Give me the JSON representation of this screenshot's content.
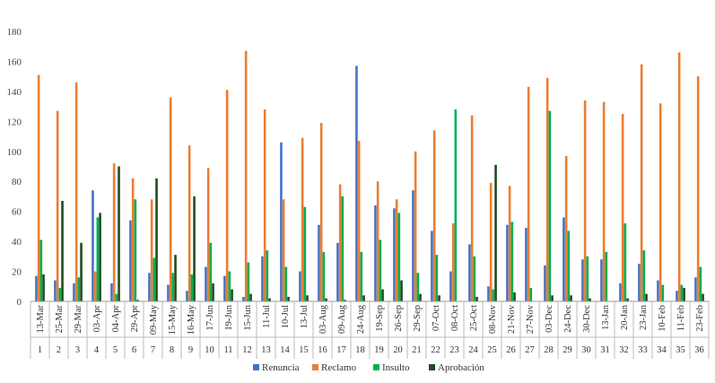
{
  "chart_data": {
    "type": "bar",
    "title": "",
    "xlabel": "",
    "ylabel": "",
    "ylim": [
      0,
      180
    ],
    "yticks": [
      0,
      20,
      40,
      60,
      80,
      100,
      120,
      140,
      160,
      180
    ],
    "grid": false,
    "legend_position": "bottom",
    "categories": [
      {
        "date": "13-Mar",
        "index": "1"
      },
      {
        "date": "25-Mar",
        "index": "2"
      },
      {
        "date": "29-Mar",
        "index": "3"
      },
      {
        "date": "03-Apr",
        "index": "4"
      },
      {
        "date": "04-Apr",
        "index": "5"
      },
      {
        "date": "29-Apr",
        "index": "6"
      },
      {
        "date": "09-May",
        "index": "7"
      },
      {
        "date": "15-May",
        "index": "8"
      },
      {
        "date": "16-May",
        "index": "9"
      },
      {
        "date": "17-Jun",
        "index": "10"
      },
      {
        "date": "19-Jun",
        "index": "11"
      },
      {
        "date": "15-Jun",
        "index": "12"
      },
      {
        "date": "11-Jul",
        "index": "13"
      },
      {
        "date": "10-Jul",
        "index": "14"
      },
      {
        "date": "13-Jul",
        "index": "15"
      },
      {
        "date": "03-Aug",
        "index": "16"
      },
      {
        "date": "09-Aug",
        "index": "17"
      },
      {
        "date": "24-Aug",
        "index": "18"
      },
      {
        "date": "19-Sep",
        "index": "19"
      },
      {
        "date": "26-Sep",
        "index": "20"
      },
      {
        "date": "29-Sep",
        "index": "21"
      },
      {
        "date": "07-Oct",
        "index": "22"
      },
      {
        "date": "08-Oct",
        "index": "23"
      },
      {
        "date": "25-Oct",
        "index": "24"
      },
      {
        "date": "08-Nov",
        "index": "25"
      },
      {
        "date": "21-Nov",
        "index": "26"
      },
      {
        "date": "27-Nov",
        "index": "27"
      },
      {
        "date": "03-Dec",
        "index": "28"
      },
      {
        "date": "24-Dec",
        "index": "29"
      },
      {
        "date": "30-Dec",
        "index": "30"
      },
      {
        "date": "13-Jan",
        "index": "31"
      },
      {
        "date": "20-Jan",
        "index": "32"
      },
      {
        "date": "23-Jan",
        "index": "33"
      },
      {
        "date": "10-Feb",
        "index": "34"
      },
      {
        "date": "11-Feb",
        "index": "35"
      },
      {
        "date": "23-Feb",
        "index": "36"
      }
    ],
    "series": [
      {
        "name": "Renuncia",
        "color": "#4472C4",
        "values": [
          17,
          14,
          12,
          74,
          12,
          54,
          19,
          11,
          7,
          23,
          17,
          3,
          30,
          106,
          20,
          51,
          39,
          157,
          64,
          62,
          74,
          47,
          20,
          38,
          10,
          51,
          49,
          24,
          56,
          28,
          28,
          12,
          25,
          14,
          7,
          16
        ]
      },
      {
        "name": "Reclamo",
        "color": "#ED7D31",
        "values": [
          151,
          127,
          146,
          20,
          92,
          82,
          68,
          136,
          104,
          89,
          141,
          167,
          128,
          68,
          109,
          119,
          78,
          107,
          80,
          68,
          100,
          114,
          52,
          124,
          79,
          77,
          143,
          149,
          97,
          134,
          133,
          125,
          158,
          132,
          166,
          150
        ]
      },
      {
        "name": "Insulto",
        "color": "#00B050",
        "values": [
          41,
          9,
          16,
          56,
          5,
          68,
          29,
          19,
          18,
          39,
          20,
          26,
          34,
          23,
          63,
          33,
          70,
          33,
          41,
          59,
          19,
          31,
          128,
          30,
          8,
          53,
          9,
          127,
          47,
          30,
          33,
          52,
          34,
          11,
          11,
          23
        ]
      },
      {
        "name": "Aprobación",
        "color": "#1E4D1E",
        "values": [
          18,
          67,
          39,
          59,
          90,
          1,
          82,
          31,
          70,
          12,
          8,
          5,
          2,
          3,
          4,
          2,
          1,
          4,
          8,
          14,
          5,
          4,
          0,
          3,
          91,
          6,
          0,
          4,
          4,
          2,
          0,
          2,
          5,
          0,
          9,
          5
        ]
      }
    ]
  }
}
